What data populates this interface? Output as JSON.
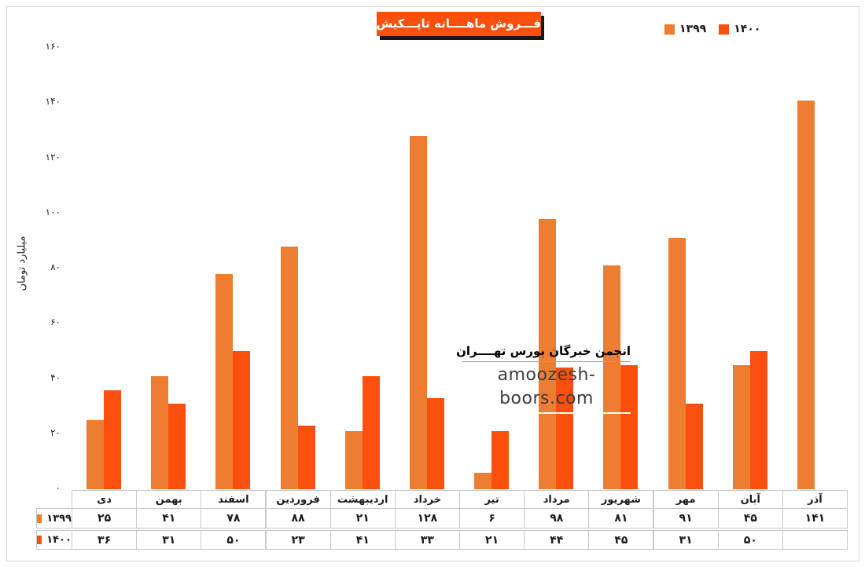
{
  "header": {
    "title": "فـــروش ماهــــانه تاپـــکیش"
  },
  "legend": {
    "items": [
      {
        "label": "۱۳۹۹",
        "color": "#ED7D31"
      },
      {
        "label": "۱۴۰۰",
        "color": "#FB500D"
      }
    ]
  },
  "watermark": {
    "line1": "انجمن خبرگان بورس تهــــران",
    "line2": "amoozesh-boors.com"
  },
  "colors": {
    "series_1399": "#ED7D31",
    "series_1400": "#FB500D",
    "title_background": "#FB500D",
    "title_shadow": "#161616",
    "table_border": "#C9C9C9",
    "frame_border": "#D9D9D9"
  },
  "chart_data": {
    "type": "bar",
    "title": "فـــروش ماهــــانه تاپـــکیش",
    "ylabel": "میلیارد تومان",
    "xlabel": "",
    "ylim": [
      0,
      160
    ],
    "grid": false,
    "legend_position": "top-right",
    "categories": [
      "دی",
      "بهمن",
      "اسفند",
      "فروردین",
      "اردیبهشت",
      "خرداد",
      "تیر",
      "مرداد",
      "شهریور",
      "مهر",
      "آبان",
      "آذر"
    ],
    "series": [
      {
        "name": "۱۳۹۹",
        "color": "#ED7D31",
        "values": [
          25,
          41,
          78,
          88,
          21,
          128,
          6,
          98,
          81,
          91,
          45,
          141
        ],
        "display": [
          "۲۵",
          "۴۱",
          "۷۸",
          "۸۸",
          "۲۱",
          "۱۲۸",
          "۶",
          "۹۸",
          "۸۱",
          "۹۱",
          "۴۵",
          "۱۴۱"
        ]
      },
      {
        "name": "۱۴۰۰",
        "color": "#FB500D",
        "values": [
          36,
          31,
          50,
          23,
          41,
          33,
          21,
          44,
          45,
          31,
          50,
          null
        ],
        "display": [
          "۳۶",
          "۳۱",
          "۵۰",
          "۲۳",
          "۴۱",
          "۳۳",
          "۲۱",
          "۴۴",
          "۴۵",
          "۳۱",
          "۵۰",
          ""
        ]
      }
    ],
    "yticks": {
      "values": [
        0,
        20,
        40,
        60,
        80,
        100,
        120,
        140,
        160
      ],
      "display": [
        "۰",
        "۲۰",
        "۴۰",
        "۶۰",
        "۸۰",
        "۱۰۰",
        "۱۲۰",
        "۱۴۰",
        "۱۶۰"
      ]
    }
  }
}
